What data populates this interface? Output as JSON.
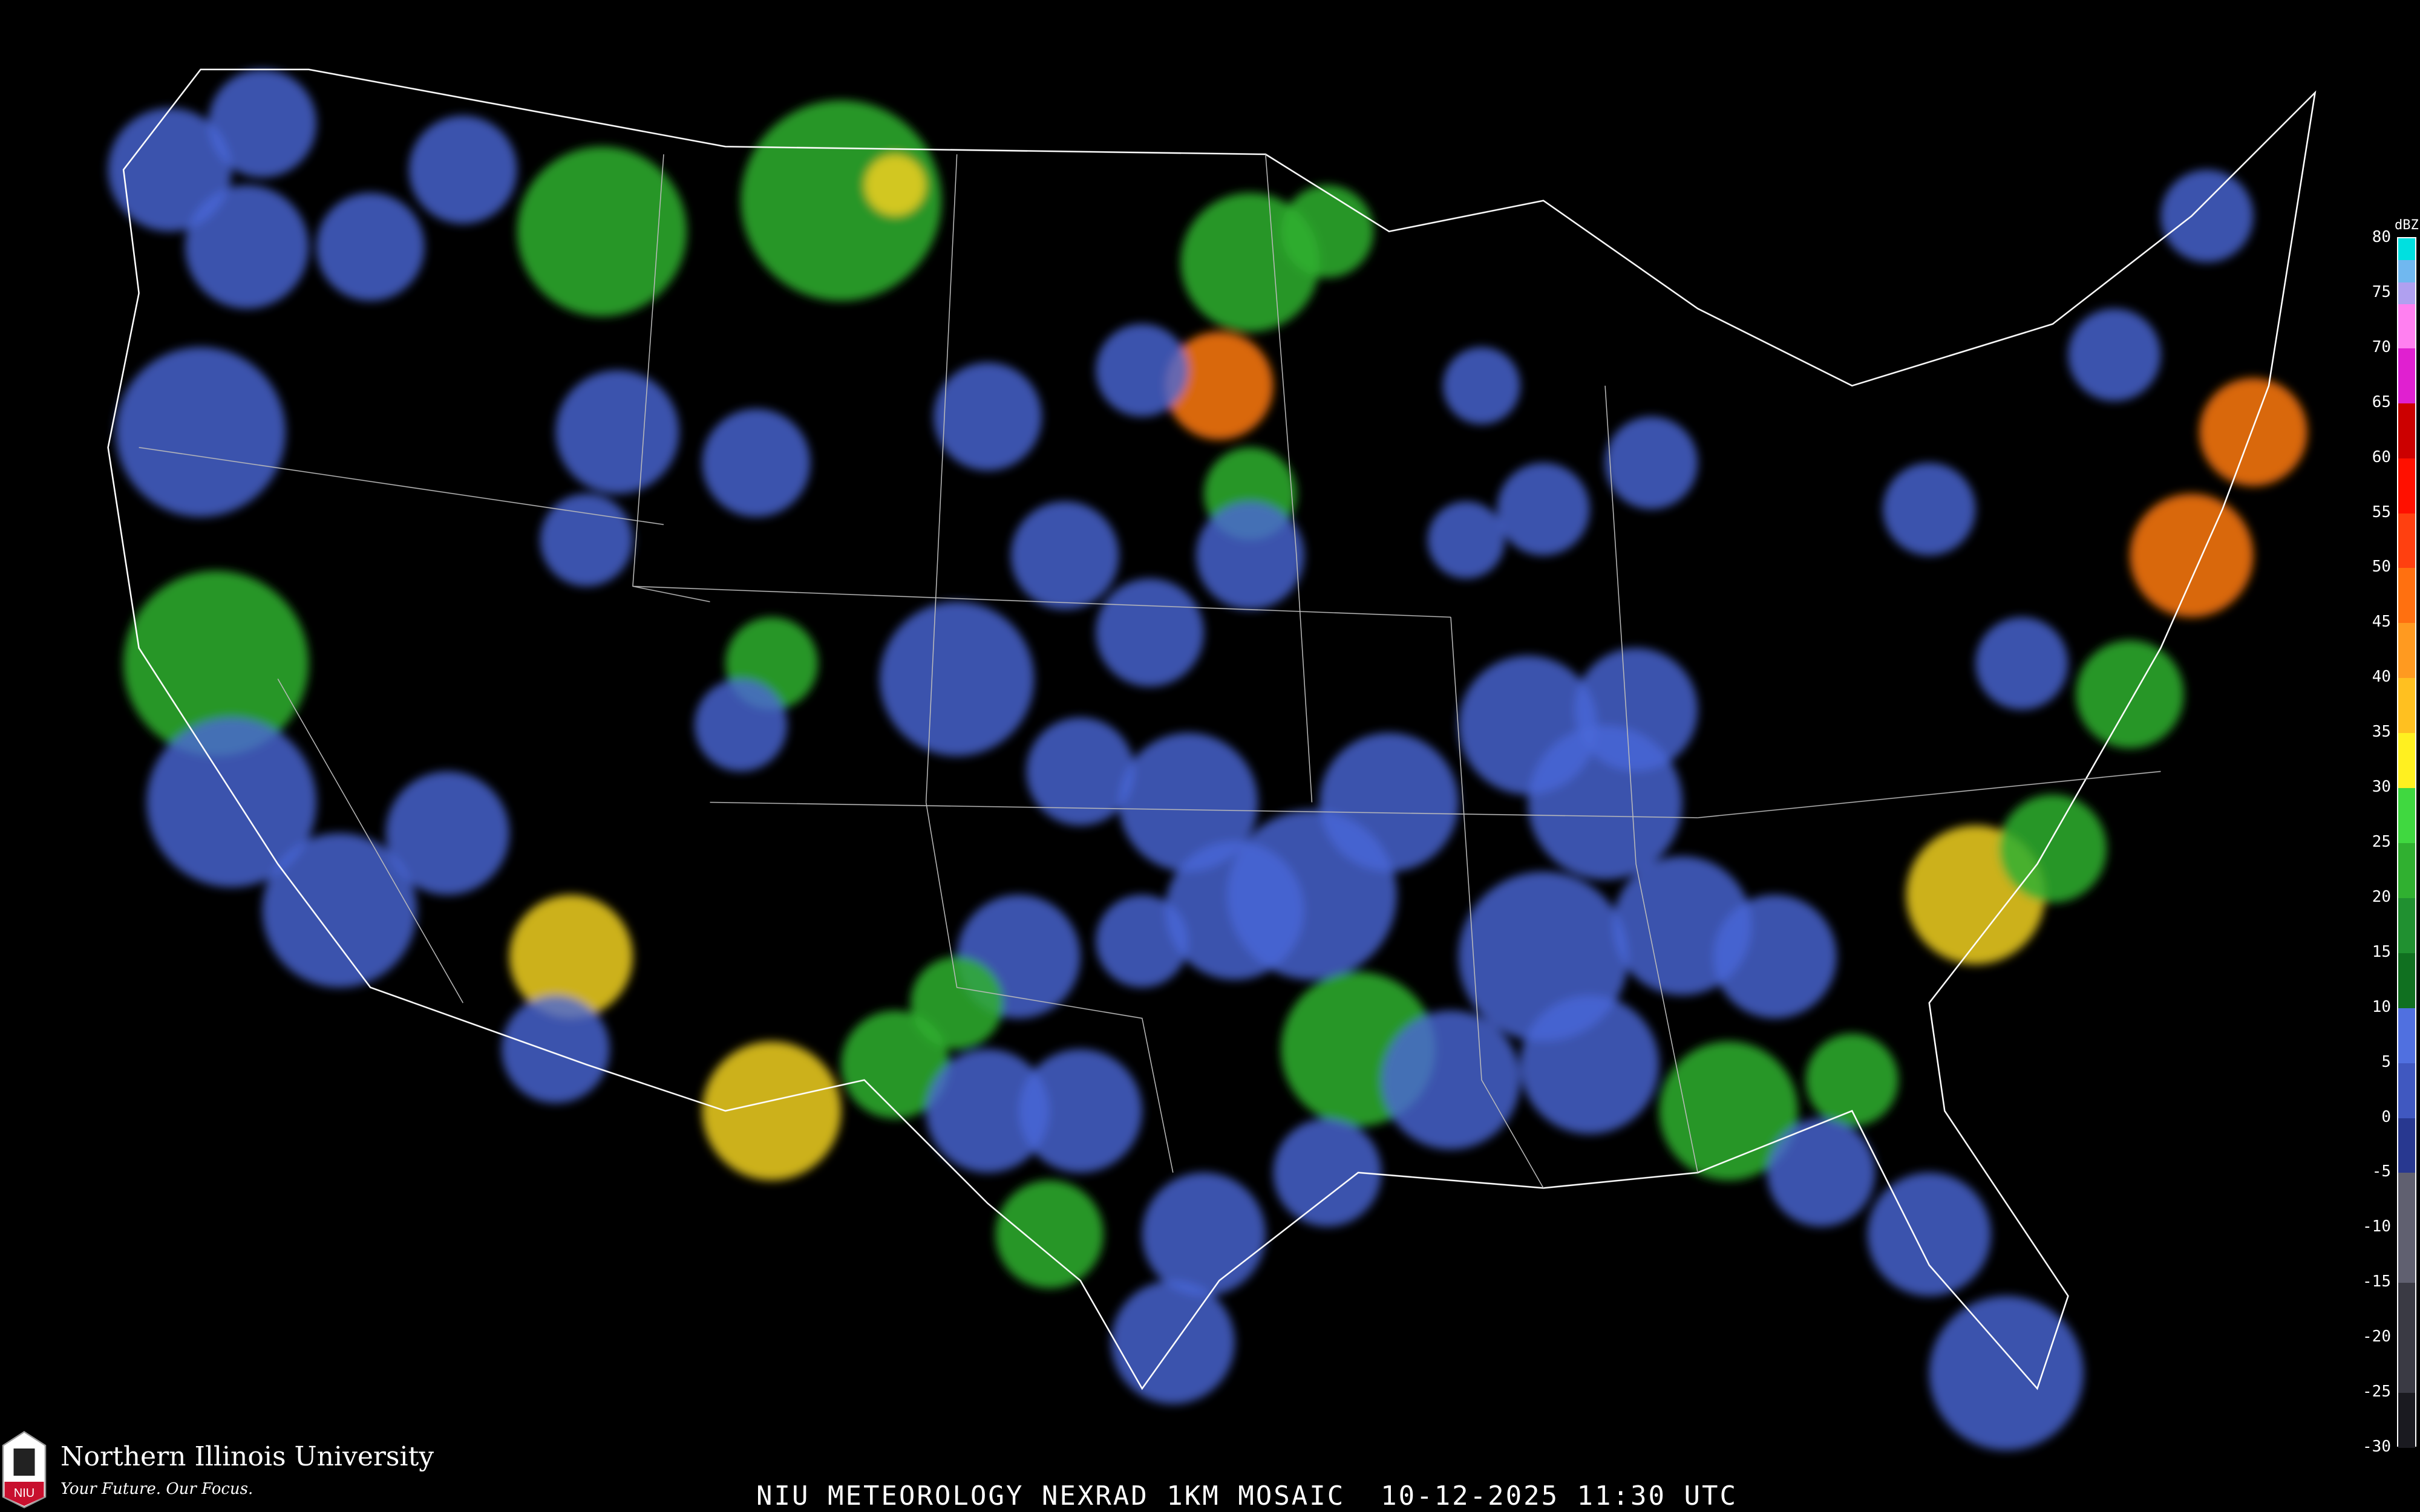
{
  "caption": "NIU METEOROLOGY NEXRAD 1KM MOSAIC  10-12-2025 11:30 UTC",
  "logo": {
    "name": "Northern Illinois University",
    "tagline": "Your Future. Our Focus.",
    "mark": "NIU"
  },
  "legend": {
    "unit": "dBZ",
    "labels": [
      "80",
      "75",
      "70",
      "65",
      "60",
      "55",
      "50",
      "45",
      "40",
      "35",
      "30",
      "25",
      "20",
      "15",
      "10",
      "5",
      "0",
      "-5",
      "-10",
      "-15",
      "-20",
      "-25",
      "-30"
    ],
    "colors": [
      {
        "from": 80,
        "to": 78,
        "color": "#00e0e0"
      },
      {
        "from": 78,
        "to": 76,
        "color": "#70b8f0"
      },
      {
        "from": 76,
        "to": 74,
        "color": "#b0a0f0"
      },
      {
        "from": 74,
        "to": 70,
        "color": "#ff80f0"
      },
      {
        "from": 70,
        "to": 65,
        "color": "#e020d0"
      },
      {
        "from": 65,
        "to": 60,
        "color": "#cc0000"
      },
      {
        "from": 60,
        "to": 55,
        "color": "#ff1000"
      },
      {
        "from": 55,
        "to": 50,
        "color": "#ff4010"
      },
      {
        "from": 50,
        "to": 45,
        "color": "#ff7010"
      },
      {
        "from": 45,
        "to": 40,
        "color": "#ff9a20"
      },
      {
        "from": 40,
        "to": 35,
        "color": "#ffc020"
      },
      {
        "from": 35,
        "to": 30,
        "color": "#fff020"
      },
      {
        "from": 30,
        "to": 25,
        "color": "#40d840"
      },
      {
        "from": 25,
        "to": 20,
        "color": "#30b030"
      },
      {
        "from": 20,
        "to": 15,
        "color": "#209030"
      },
      {
        "from": 15,
        "to": 10,
        "color": "#107020"
      },
      {
        "from": 10,
        "to": 5,
        "color": "#5070e0"
      },
      {
        "from": 5,
        "to": 0,
        "color": "#4058c0"
      },
      {
        "from": 0,
        "to": -5,
        "color": "#283890"
      },
      {
        "from": -5,
        "to": -15,
        "color": "#606070"
      },
      {
        "from": -15,
        "to": -25,
        "color": "#3a3a44"
      },
      {
        "from": -25,
        "to": -30,
        "color": "#1a1a20"
      }
    ]
  },
  "colors": {
    "background": "#000000",
    "borders": "#ffffff",
    "counties": "#555555",
    "roads": "#8a4a20"
  }
}
